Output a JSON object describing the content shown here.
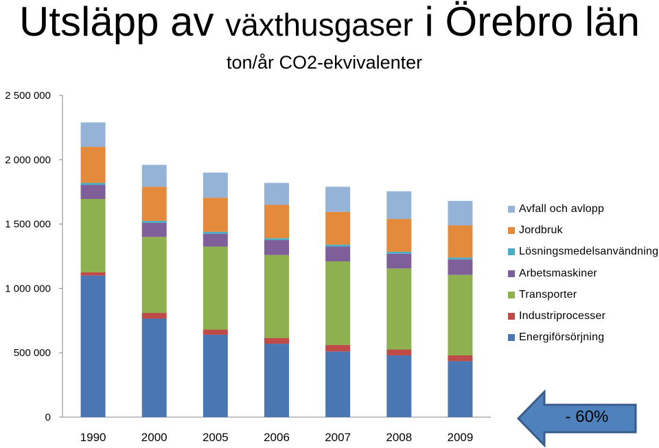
{
  "title": {
    "part1": "Utsläpp av ",
    "part2": "växthusgaser",
    "part3": " i Örebro län"
  },
  "subtitle": "ton/år CO2-ekvivalenter",
  "colors": {
    "avfall": "#95B3D7",
    "jordbruk": "#E38A3C",
    "losning": "#4BACC6",
    "arbets": "#7F5F9A",
    "transport": "#8EB04E",
    "industri": "#BF4B48",
    "energi": "#4A77B1",
    "arrow_fill": "#4F81BD",
    "arrow_stroke": "#385D8A"
  },
  "chart_data": {
    "type": "bar",
    "stacked": true,
    "categories": [
      "1990",
      "2000",
      "2005",
      "2006",
      "2007",
      "2008",
      "2009"
    ],
    "ylim": [
      0,
      2500000
    ],
    "yticks": [
      0,
      500000,
      1000000,
      1500000,
      2000000,
      2500000
    ],
    "ytick_labels": [
      "0",
      "500 000",
      "1 000 000",
      "1 500 000",
      "2 000 000",
      "2 500 000"
    ],
    "grid": false,
    "legend_position": "right",
    "series": [
      {
        "name": "Energiförsörjning",
        "color_key": "energi",
        "values": [
          1100000,
          765000,
          640000,
          570000,
          510000,
          480000,
          435000
        ]
      },
      {
        "name": "Industriprocesser",
        "color_key": "industri",
        "values": [
          25000,
          45000,
          40000,
          45000,
          50000,
          45000,
          45000
        ]
      },
      {
        "name": "Transporter",
        "color_key": "transport",
        "values": [
          570000,
          590000,
          645000,
          645000,
          650000,
          630000,
          625000
        ]
      },
      {
        "name": "Arbetsmaskiner",
        "color_key": "arbets",
        "values": [
          110000,
          110000,
          100000,
          115000,
          115000,
          115000,
          120000
        ]
      },
      {
        "name": "Lösningsmedelsanvändning",
        "color_key": "losning",
        "values": [
          15000,
          15000,
          15000,
          15000,
          15000,
          15000,
          15000
        ]
      },
      {
        "name": "Jordbruk",
        "color_key": "jordbruk",
        "values": [
          280000,
          265000,
          265000,
          260000,
          255000,
          255000,
          250000
        ]
      },
      {
        "name": "Avfall och avlopp",
        "color_key": "avfall",
        "values": [
          190000,
          170000,
          195000,
          170000,
          195000,
          215000,
          190000
        ]
      }
    ],
    "legend_order": [
      "Avfall och avlopp",
      "Jordbruk",
      "Lösningsmedelsanvändning",
      "Arbetsmaskiner",
      "Transporter",
      "Industriprocesser",
      "Energiförsörjning"
    ],
    "annotation": "- 60%"
  }
}
